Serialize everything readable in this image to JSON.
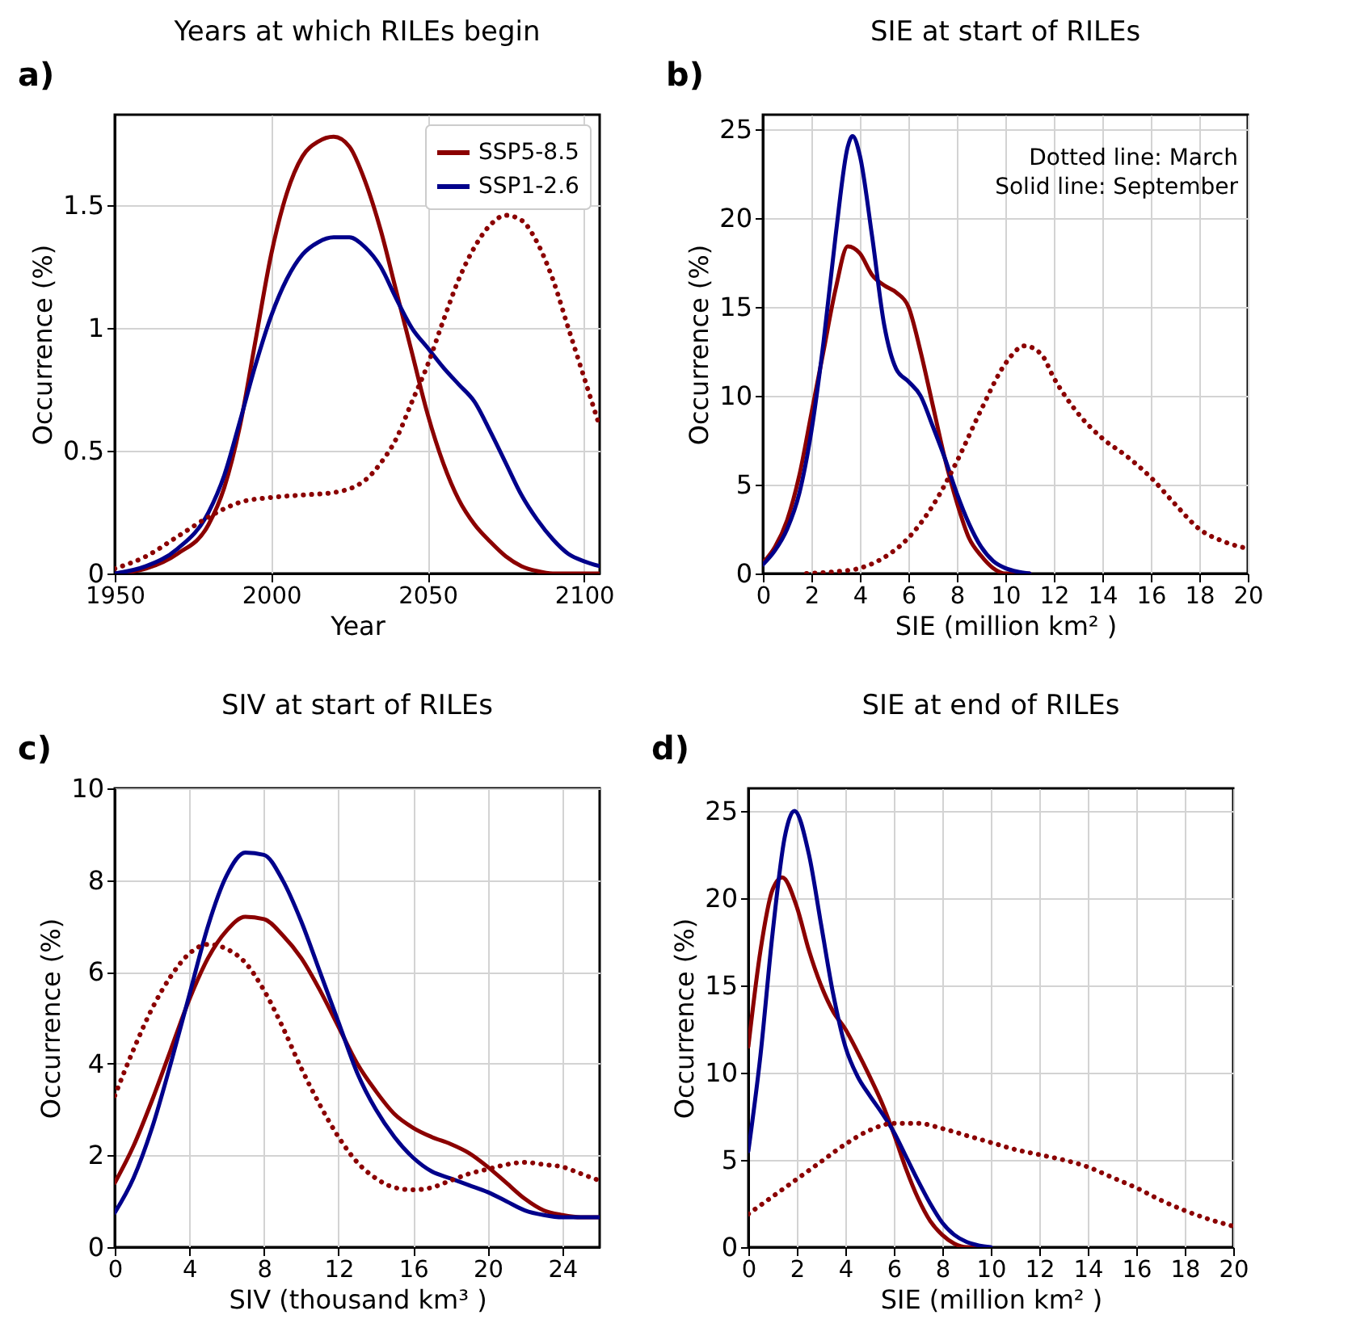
{
  "chart_data": [
    {
      "type": "line",
      "title": "Years at which RILEs begin",
      "xlabel": "Year",
      "ylabel": "Occurrence (%)",
      "annotations": [
        "a)"
      ],
      "xlim": [
        1950,
        2105
      ],
      "xticks": [
        1950,
        2000,
        2050,
        2100
      ],
      "ylim": [
        0,
        1.87
      ],
      "yticks": [
        0,
        0.5,
        1,
        1.5
      ],
      "grid": true,
      "legend": "top right",
      "series": [
        {
          "name": "SSP5-8.5",
          "color": "#8b0000",
          "line_style": "solid",
          "x": [
            1950,
            1960,
            1970,
            1980,
            1985,
            1990,
            1995,
            2000,
            2005,
            2010,
            2015,
            2020,
            2025,
            2030,
            2035,
            2040,
            2045,
            2050,
            2055,
            2060,
            2065,
            2070,
            2075,
            2080,
            2085,
            2090,
            2105
          ],
          "values": [
            0,
            0.02,
            0.08,
            0.2,
            0.35,
            0.6,
            0.95,
            1.3,
            1.55,
            1.7,
            1.76,
            1.78,
            1.74,
            1.6,
            1.4,
            1.15,
            0.9,
            0.65,
            0.45,
            0.3,
            0.2,
            0.13,
            0.07,
            0.03,
            0.01,
            0,
            0
          ]
        },
        {
          "name": "SSP1-2.6",
          "color": "#00008b",
          "line_style": "solid",
          "x": [
            1950,
            1960,
            1970,
            1980,
            1985,
            1990,
            1995,
            2000,
            2005,
            2010,
            2015,
            2020,
            2025,
            2030,
            2035,
            2040,
            2045,
            2050,
            2055,
            2060,
            2065,
            2070,
            2075,
            2080,
            2085,
            2090,
            2095,
            2100,
            2105
          ],
          "values": [
            0,
            0.03,
            0.1,
            0.25,
            0.4,
            0.62,
            0.85,
            1.05,
            1.2,
            1.3,
            1.35,
            1.37,
            1.37,
            1.33,
            1.25,
            1.12,
            1.0,
            0.92,
            0.84,
            0.77,
            0.7,
            0.58,
            0.45,
            0.32,
            0.22,
            0.14,
            0.08,
            0.05,
            0.03
          ]
        },
        {
          "color": "#8b0000",
          "line_style": "dotted",
          "x": [
            1950,
            1960,
            1970,
            1980,
            1990,
            2000,
            2010,
            2020,
            2030,
            2035,
            2040,
            2045,
            2050,
            2055,
            2060,
            2065,
            2070,
            2075,
            2080,
            2085,
            2090,
            2095,
            2100,
            2105
          ],
          "values": [
            0.02,
            0.07,
            0.15,
            0.23,
            0.29,
            0.31,
            0.32,
            0.33,
            0.38,
            0.45,
            0.55,
            0.7,
            0.85,
            1.03,
            1.2,
            1.33,
            1.42,
            1.46,
            1.44,
            1.35,
            1.2,
            1.0,
            0.8,
            0.6
          ]
        }
      ]
    },
    {
      "type": "line",
      "title": "SIE at start of RILEs",
      "xlabel": "SIE (million km² )",
      "ylabel": "Occurrence (%)",
      "annotations": [
        "b)",
        "Dotted line: March\nSolid line: September"
      ],
      "xlim": [
        0,
        20
      ],
      "xticks": [
        0,
        2,
        4,
        6,
        8,
        10,
        12,
        14,
        16,
        18,
        20
      ],
      "ylim": [
        0,
        25.8
      ],
      "yticks": [
        0,
        5,
        10,
        15,
        20,
        25
      ],
      "grid": true,
      "series": [
        {
          "color": "#8b0000",
          "line_style": "solid",
          "x": [
            0,
            0.5,
            1,
            1.5,
            2,
            2.5,
            3,
            3.5,
            4,
            4.5,
            5,
            5.5,
            6,
            6.5,
            7,
            7.5,
            8,
            8.5,
            9,
            9.5,
            10,
            11
          ],
          "values": [
            0.6,
            1.5,
            3,
            5.5,
            9,
            12.5,
            16,
            18.4,
            18,
            16.8,
            16.2,
            15.8,
            15,
            12.5,
            9.5,
            6.5,
            4,
            2,
            1,
            0.3,
            0,
            0
          ]
        },
        {
          "color": "#00008b",
          "line_style": "solid",
          "x": [
            0,
            0.5,
            1,
            1.5,
            2,
            2.5,
            3,
            3.5,
            3.7,
            4,
            4.5,
            5,
            5.5,
            6,
            6.5,
            7,
            7.5,
            8,
            8.5,
            9,
            9.5,
            10,
            10.5,
            11
          ],
          "values": [
            0.5,
            1.3,
            2.5,
            4.5,
            8,
            13,
            19,
            24,
            24.6,
            23.5,
            19,
            14,
            11.5,
            10.8,
            10,
            8.3,
            6.5,
            4.5,
            2.8,
            1.5,
            0.7,
            0.3,
            0.1,
            0
          ]
        },
        {
          "color": "#8b0000",
          "line_style": "dotted",
          "x": [
            1.8,
            3,
            4,
            5,
            6,
            7,
            8,
            9,
            10,
            10.8,
            11.5,
            12,
            13,
            14,
            15,
            16,
            17,
            18,
            19,
            20
          ],
          "values": [
            0,
            0.1,
            0.3,
            0.9,
            2.0,
            3.8,
            6.3,
            9.2,
            11.8,
            12.8,
            12.3,
            11,
            9,
            7.6,
            6.6,
            5.4,
            3.9,
            2.5,
            1.8,
            1.4
          ]
        }
      ]
    },
    {
      "type": "line",
      "title": "SIV at start of RILEs",
      "xlabel": "SIV (thousand km³ )",
      "ylabel": "Occurrence (%)",
      "annotations": [
        "c)"
      ],
      "xlim": [
        0,
        26
      ],
      "xticks": [
        0,
        4,
        8,
        12,
        16,
        20,
        24
      ],
      "ylim": [
        0,
        10
      ],
      "yticks": [
        0,
        2,
        4,
        6,
        8,
        10
      ],
      "grid": true,
      "series": [
        {
          "color": "#8b0000",
          "line_style": "solid",
          "x": [
            0,
            1,
            2,
            3,
            4,
            5,
            6,
            7,
            8,
            9,
            10,
            11,
            12,
            13,
            14,
            15,
            16,
            17,
            18,
            19,
            20,
            21,
            22,
            23,
            24,
            25,
            26
          ],
          "values": [
            1.4,
            2.2,
            3.2,
            4.3,
            5.4,
            6.3,
            6.9,
            7.2,
            7.15,
            6.8,
            6.3,
            5.6,
            4.8,
            4.0,
            3.4,
            2.9,
            2.6,
            2.4,
            2.25,
            2.05,
            1.75,
            1.4,
            1.05,
            0.8,
            0.7,
            0.65,
            0.65
          ]
        },
        {
          "color": "#00008b",
          "line_style": "solid",
          "x": [
            0,
            1,
            2,
            3,
            4,
            5,
            6,
            7,
            8,
            9,
            10,
            11,
            12,
            13,
            14,
            15,
            16,
            17,
            18,
            19,
            20,
            21,
            22,
            23,
            24,
            25,
            26
          ],
          "values": [
            0.75,
            1.5,
            2.6,
            4.0,
            5.5,
            7.0,
            8.1,
            8.6,
            8.55,
            8.0,
            7.1,
            6.0,
            4.9,
            3.8,
            3.0,
            2.4,
            1.95,
            1.65,
            1.5,
            1.35,
            1.2,
            1.0,
            0.8,
            0.7,
            0.65,
            0.65,
            0.65
          ]
        },
        {
          "color": "#8b0000",
          "line_style": "dotted",
          "x": [
            0,
            1,
            2,
            3,
            4,
            5,
            6,
            7,
            8,
            9,
            10,
            11,
            12,
            13,
            14,
            15,
            16,
            17,
            18,
            19,
            20,
            21,
            22,
            23,
            24,
            25,
            26
          ],
          "values": [
            3.3,
            4.3,
            5.2,
            5.9,
            6.4,
            6.6,
            6.5,
            6.2,
            5.6,
            4.8,
            3.9,
            3.1,
            2.4,
            1.85,
            1.5,
            1.3,
            1.25,
            1.3,
            1.45,
            1.6,
            1.7,
            1.8,
            1.85,
            1.8,
            1.75,
            1.6,
            1.45
          ]
        }
      ]
    },
    {
      "type": "line",
      "title": "SIE at end of RILEs",
      "xlabel": "SIE (million km² )",
      "ylabel": "Occurrence (%)",
      "annotations": [
        "d)"
      ],
      "xlim": [
        0,
        20
      ],
      "xticks": [
        0,
        2,
        4,
        6,
        8,
        10,
        12,
        14,
        16,
        18,
        20
      ],
      "ylim": [
        0,
        26.3
      ],
      "yticks": [
        0,
        5,
        10,
        15,
        20,
        25
      ],
      "grid": true,
      "series": [
        {
          "color": "#8b0000",
          "line_style": "solid",
          "x": [
            0,
            0.5,
            1,
            1.4,
            2,
            2.5,
            3,
            3.5,
            4,
            4.5,
            5,
            5.5,
            6,
            6.5,
            7,
            7.5,
            8,
            8.5,
            9,
            9.5
          ],
          "values": [
            11.5,
            17,
            20.5,
            21.2,
            19.5,
            17,
            15,
            13.5,
            12.5,
            11.2,
            9.8,
            8.3,
            6.5,
            4.5,
            2.8,
            1.5,
            0.7,
            0.2,
            0,
            0
          ]
        },
        {
          "color": "#00008b",
          "line_style": "solid",
          "x": [
            0,
            0.5,
            1,
            1.5,
            1.9,
            2.5,
            3,
            3.5,
            4,
            4.5,
            5,
            5.5,
            6,
            6.5,
            7,
            7.5,
            8,
            8.5,
            9,
            9.5,
            10
          ],
          "values": [
            5.5,
            11,
            18,
            23.5,
            25,
            22.5,
            18.5,
            14.5,
            11.5,
            9.8,
            8.7,
            7.7,
            6.6,
            5.2,
            3.8,
            2.5,
            1.4,
            0.7,
            0.3,
            0.1,
            0
          ]
        },
        {
          "color": "#8b0000",
          "line_style": "dotted",
          "x": [
            0,
            1,
            2,
            3,
            4,
            5,
            6,
            7,
            8,
            9,
            10,
            11,
            12,
            13,
            14,
            15,
            16,
            17,
            18,
            19,
            20
          ],
          "values": [
            1.9,
            2.9,
            3.9,
            4.9,
            5.9,
            6.7,
            7.1,
            7.1,
            6.8,
            6.4,
            6.0,
            5.6,
            5.3,
            5.0,
            4.6,
            4.0,
            3.4,
            2.7,
            2.1,
            1.6,
            1.2
          ]
        }
      ]
    }
  ]
}
